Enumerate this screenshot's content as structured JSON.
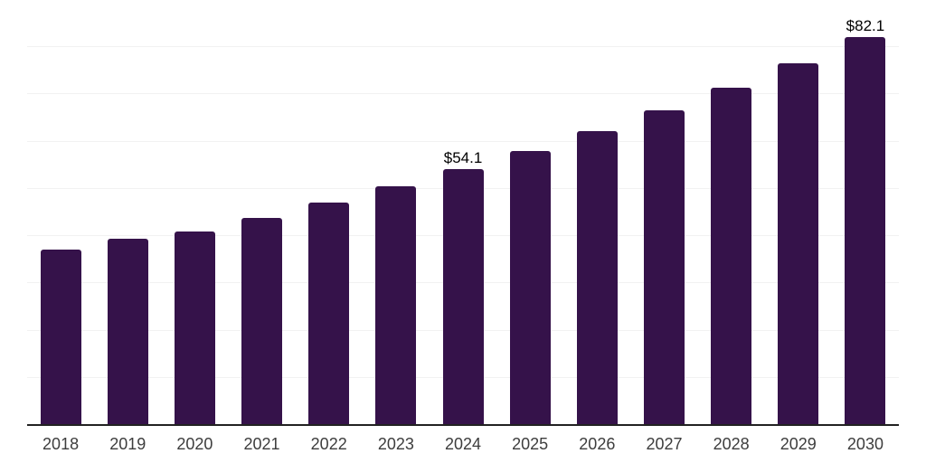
{
  "chart_data": {
    "type": "bar",
    "categories": [
      "2018",
      "2019",
      "2020",
      "2021",
      "2022",
      "2023",
      "2024",
      "2025",
      "2026",
      "2027",
      "2028",
      "2029",
      "2030"
    ],
    "values": [
      37.1,
      39.4,
      40.9,
      43.9,
      47.2,
      50.6,
      54.1,
      58.0,
      62.2,
      66.6,
      71.4,
      76.6,
      82.1
    ],
    "value_labels": [
      {
        "category": "2024",
        "text": "$54.1"
      },
      {
        "category": "2030",
        "text": "$82.1"
      }
    ],
    "title": "",
    "xlabel": "",
    "ylabel": "",
    "ylim": [
      0,
      90
    ],
    "grid": {
      "axis": "y",
      "step": 10,
      "visible": true,
      "y_tick_labels_visible": false
    },
    "legend": "none",
    "colors": {
      "bar": "#35124a",
      "axis_line": "#222222",
      "gridline": "#f2f2f2",
      "tick_label": "#3d3d3d",
      "value_label": "#000000",
      "background": "#ffffff"
    }
  }
}
